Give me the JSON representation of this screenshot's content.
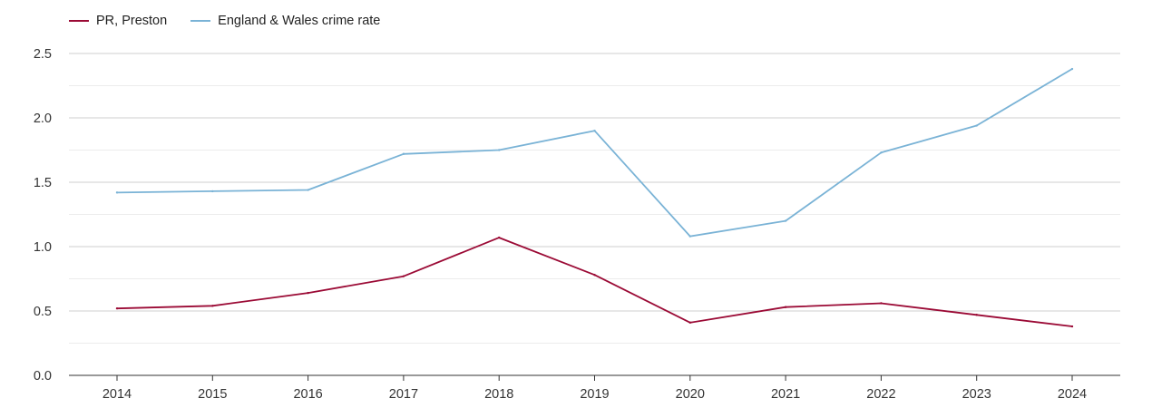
{
  "chart_data": {
    "type": "line",
    "title": "",
    "xlabel": "",
    "ylabel": "",
    "categories": [
      "2014",
      "2015",
      "2016",
      "2017",
      "2018",
      "2019",
      "2020",
      "2021",
      "2022",
      "2023",
      "2024"
    ],
    "series": [
      {
        "name": "PR, Preston",
        "color": "#9b0a35",
        "values": [
          0.52,
          0.54,
          0.64,
          0.77,
          1.07,
          0.78,
          0.41,
          0.53,
          0.56,
          0.47,
          0.38
        ]
      },
      {
        "name": "England & Wales crime rate",
        "color": "#7ab3d6",
        "values": [
          1.42,
          1.43,
          1.44,
          1.72,
          1.75,
          1.9,
          1.08,
          1.2,
          1.73,
          1.94,
          2.38
        ]
      }
    ],
    "ylim": [
      0,
      2.5
    ],
    "yticks": [
      "0.0",
      "0.5",
      "1.0",
      "1.5",
      "2.0",
      "2.5"
    ],
    "ytick_values": [
      0,
      0.5,
      1.0,
      1.5,
      2.0,
      2.5
    ],
    "grid": true,
    "legend_position": "top-left"
  }
}
